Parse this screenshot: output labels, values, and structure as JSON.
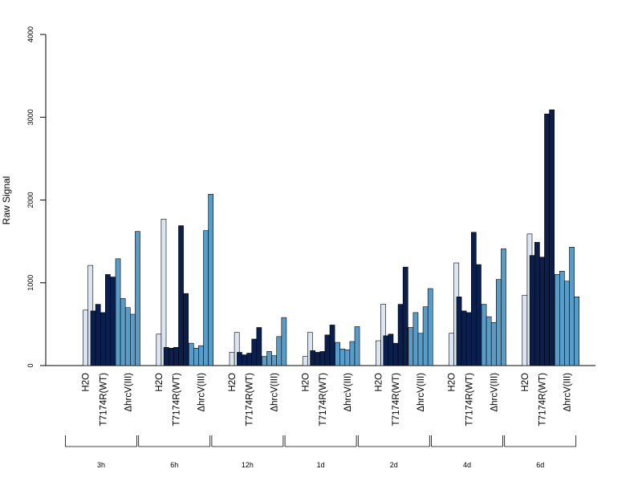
{
  "chart_data": {
    "type": "bar",
    "ylabel": "Raw Signal",
    "ylim": [
      0,
      4000
    ],
    "yticks": [
      0,
      1000,
      2000,
      3000,
      4000
    ],
    "conditions": [
      "H2O",
      "T7174R(WT)",
      "ΔhrcV(III)"
    ],
    "colors": {
      "H2O": "#dbe6f2",
      "T7174R(WT)": "#0a1f4e",
      "ΔhrcV(III)": "#5a9cc8"
    },
    "groups": [
      {
        "time": "3h",
        "H2O": [
          0,
          670,
          1210
        ],
        "T7174R(WT)": [
          660,
          740,
          640,
          1100,
          1070
        ],
        "ΔhrcV(III)": [
          1290,
          810,
          700,
          620,
          1620
        ]
      },
      {
        "time": "6h",
        "H2O": [
          0,
          380,
          1770
        ],
        "T7174R(WT)": [
          220,
          210,
          220,
          1690,
          870
        ],
        "ΔhrcV(III)": [
          270,
          210,
          240,
          1630,
          2070
        ]
      },
      {
        "time": "12h",
        "H2O": [
          0,
          160,
          400
        ],
        "T7174R(WT)": [
          160,
          130,
          150,
          320,
          460
        ],
        "ΔhrcV(III)": [
          110,
          170,
          120,
          350,
          580
        ]
      },
      {
        "time": "1d",
        "H2O": [
          0,
          110,
          400
        ],
        "T7174R(WT)": [
          180,
          160,
          170,
          370,
          490
        ],
        "ΔhrcV(III)": [
          280,
          200,
          190,
          290,
          470
        ]
      },
      {
        "time": "2d",
        "H2O": [
          0,
          300,
          740
        ],
        "T7174R(WT)": [
          360,
          380,
          270,
          740,
          1190
        ],
        "ΔhrcV(III)": [
          460,
          640,
          390,
          710,
          930
        ]
      },
      {
        "time": "4d",
        "H2O": [
          0,
          390,
          1240
        ],
        "T7174R(WT)": [
          830,
          660,
          640,
          1610,
          1220
        ],
        "ΔhrcV(III)": [
          740,
          590,
          520,
          1040,
          1410
        ]
      },
      {
        "time": "6d",
        "H2O": [
          0,
          850,
          1590
        ],
        "T7174R(WT)": [
          1330,
          1490,
          1310,
          3040,
          3090
        ],
        "ΔhrcV(III)": [
          1100,
          1140,
          1020,
          1430,
          830
        ]
      }
    ]
  }
}
